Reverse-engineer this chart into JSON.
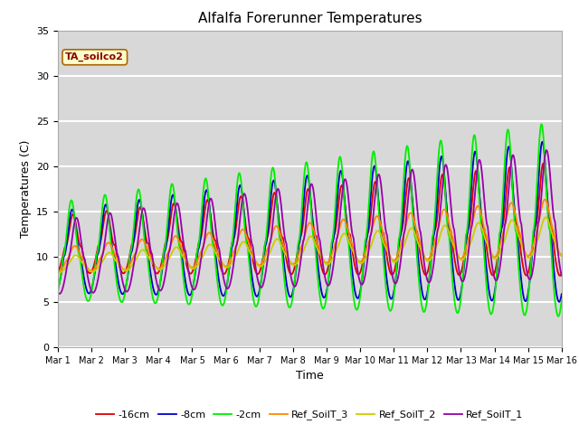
{
  "title": "Alfalfa Forerunner Temperatures",
  "xlabel": "Time",
  "ylabel": "Temperatures (C)",
  "ylim": [
    0,
    35
  ],
  "annotation": "TA_soilco2",
  "background_color": "#ffffff",
  "plot_bg_color": "#d8d8d8",
  "legend": [
    {
      "label": "-16cm",
      "color": "#dd0000"
    },
    {
      "label": "-8cm",
      "color": "#0000cc"
    },
    {
      "label": "-2cm",
      "color": "#00ee00"
    },
    {
      "label": "Ref_SoilT_3",
      "color": "#ff8800"
    },
    {
      "label": "Ref_SoilT_2",
      "color": "#cccc00"
    },
    {
      "label": "Ref_SoilT_1",
      "color": "#9900aa"
    }
  ],
  "xtick_labels": [
    "Mar 1",
    "Mar 2",
    "Mar 3",
    "Mar 4",
    "Mar 5",
    "Mar 6",
    "Mar 7",
    "Mar 8",
    "Mar 9",
    "Mar 10",
    "Mar 11",
    "Mar 12",
    "Mar 13",
    "Mar 14",
    "Mar 15",
    "Mar 16"
  ],
  "ytick_labels": [
    0,
    5,
    10,
    15,
    20,
    25,
    30,
    35
  ]
}
